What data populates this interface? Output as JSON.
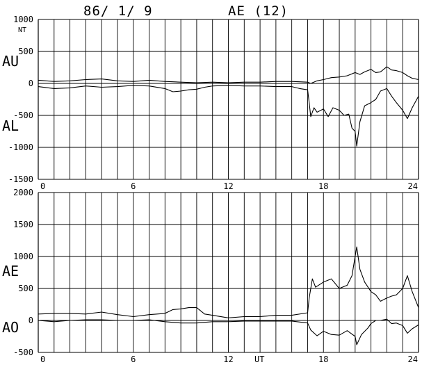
{
  "header": {
    "date": "86/ 1/ 9",
    "index": "AE (12)"
  },
  "chart_data": [
    {
      "type": "line",
      "panel": "top",
      "unit_label": "NT",
      "series_labels": [
        "AU",
        "AL"
      ],
      "xlim": [
        0,
        24
      ],
      "ylim": [
        -1500,
        1000
      ],
      "x_ticks": [
        0,
        6,
        12,
        18,
        24
      ],
      "y_ticks": [
        1000,
        500,
        0,
        -500,
        -1000,
        -1500
      ],
      "grid": true,
      "x_label": "",
      "series": [
        {
          "key": "AU",
          "x": [
            0,
            1,
            2,
            3,
            4,
            5,
            6,
            7,
            8,
            9,
            10,
            11,
            12,
            13,
            14,
            15,
            16,
            17,
            17.2,
            17.6,
            18,
            18.5,
            19,
            19.5,
            20,
            20.3,
            20.6,
            21,
            21.3,
            21.6,
            22,
            22.3,
            22.6,
            23,
            23.3,
            23.6,
            24
          ],
          "y": [
            50,
            30,
            40,
            60,
            70,
            40,
            30,
            50,
            30,
            20,
            10,
            20,
            10,
            20,
            20,
            30,
            30,
            20,
            0,
            40,
            60,
            90,
            100,
            120,
            170,
            140,
            180,
            220,
            170,
            180,
            260,
            210,
            200,
            170,
            120,
            80,
            60
          ]
        },
        {
          "key": "AL",
          "x": [
            0,
            1,
            2,
            3,
            4,
            5,
            6,
            7,
            8,
            8.5,
            9,
            9.5,
            10,
            10.5,
            11,
            12,
            13,
            14,
            15,
            16,
            16.5,
            17,
            17.1,
            17.2,
            17.4,
            17.6,
            18,
            18.3,
            18.6,
            19,
            19.3,
            19.6,
            19.8,
            20,
            20.1,
            20.3,
            20.6,
            21,
            21.3,
            21.6,
            22,
            22.3,
            22.6,
            23,
            23.3,
            23.6,
            24
          ],
          "y": [
            -50,
            -80,
            -70,
            -40,
            -60,
            -50,
            -30,
            -40,
            -80,
            -130,
            -120,
            -100,
            -90,
            -60,
            -40,
            -30,
            -40,
            -40,
            -50,
            -50,
            -80,
            -100,
            -300,
            -520,
            -380,
            -450,
            -400,
            -520,
            -380,
            -420,
            -500,
            -480,
            -700,
            -750,
            -980,
            -600,
            -350,
            -300,
            -250,
            -120,
            -80,
            -200,
            -300,
            -420,
            -550,
            -380,
            -200
          ]
        }
      ]
    },
    {
      "type": "line",
      "panel": "bottom",
      "series_labels": [
        "AE",
        "AO"
      ],
      "xlim": [
        0,
        24
      ],
      "ylim": [
        -500,
        2000
      ],
      "x_ticks": [
        0,
        6,
        12,
        18,
        24
      ],
      "y_ticks": [
        2000,
        1500,
        1000,
        500,
        0,
        -500
      ],
      "grid": true,
      "x_label": "UT",
      "series": [
        {
          "key": "AE",
          "x": [
            0,
            1,
            2,
            3,
            4,
            5,
            6,
            7,
            8,
            8.5,
            9,
            9.5,
            10,
            10.5,
            11,
            12,
            13,
            14,
            15,
            16,
            17,
            17.1,
            17.3,
            17.5,
            18,
            18.5,
            19,
            19.5,
            19.8,
            20,
            20.1,
            20.3,
            20.6,
            21,
            21.3,
            21.6,
            22,
            22.3,
            22.6,
            23,
            23.3,
            23.6,
            24
          ],
          "y": [
            100,
            110,
            110,
            100,
            130,
            90,
            60,
            90,
            110,
            170,
            180,
            200,
            200,
            100,
            80,
            40,
            60,
            60,
            80,
            80,
            120,
            350,
            650,
            520,
            600,
            650,
            500,
            550,
            700,
            1000,
            1150,
            800,
            600,
            450,
            400,
            300,
            350,
            380,
            400,
            500,
            700,
            450,
            200
          ]
        },
        {
          "key": "AO",
          "x": [
            0,
            1,
            2,
            3,
            4,
            5,
            6,
            7,
            8,
            9,
            10,
            11,
            12,
            13,
            14,
            15,
            16,
            17,
            17.2,
            17.6,
            18,
            18.5,
            19,
            19.5,
            20,
            20.1,
            20.4,
            20.8,
            21,
            21.3,
            21.6,
            22,
            22.3,
            22.6,
            23,
            23.3,
            23.6,
            24
          ],
          "y": [
            0,
            -20,
            0,
            10,
            10,
            0,
            0,
            10,
            -20,
            -40,
            -40,
            -20,
            -20,
            -10,
            -10,
            -10,
            -10,
            -40,
            -150,
            -240,
            -170,
            -220,
            -230,
            -160,
            -250,
            -380,
            -220,
            -120,
            -50,
            0,
            0,
            20,
            -50,
            -40,
            -80,
            -200,
            -130,
            -70
          ]
        }
      ]
    }
  ]
}
